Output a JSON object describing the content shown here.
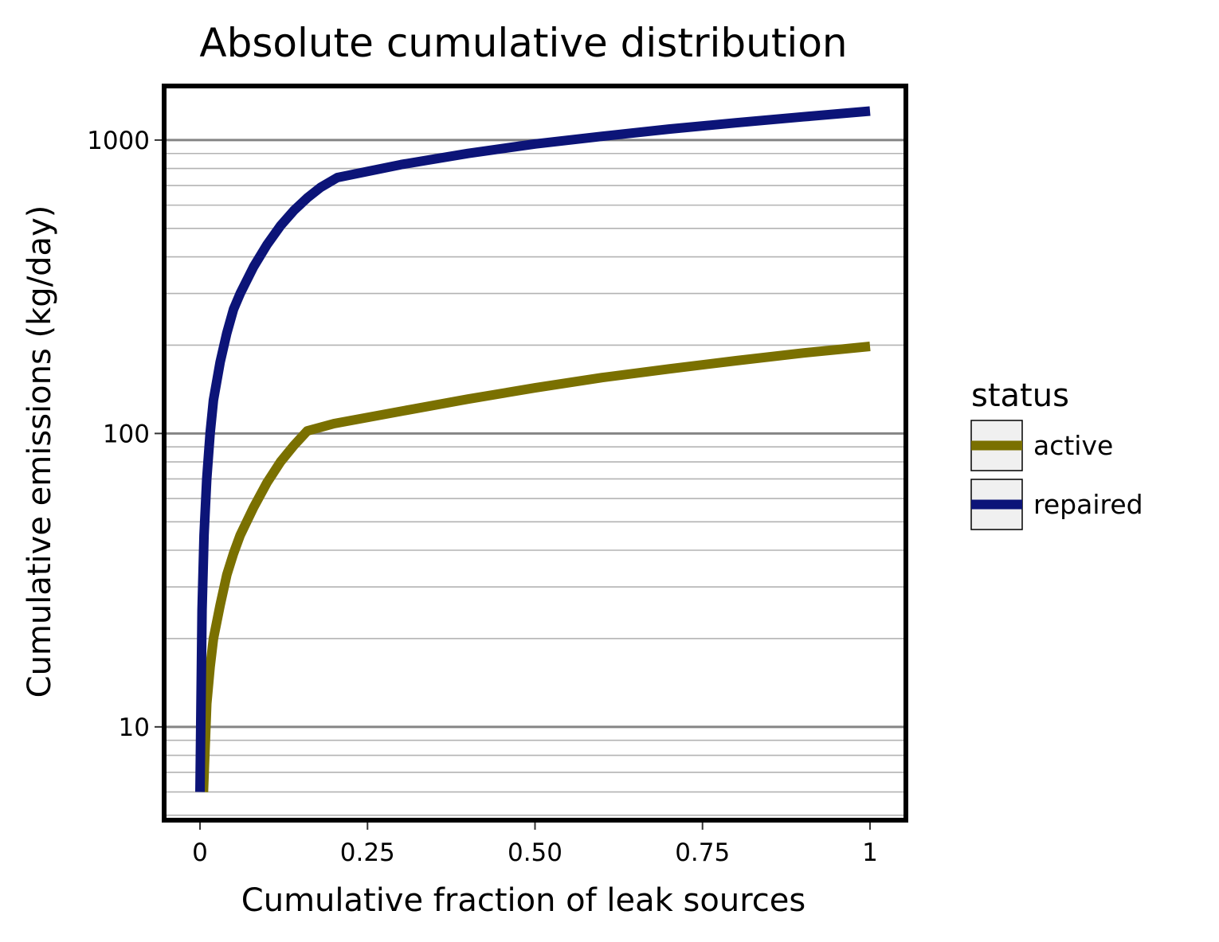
{
  "chart_data": {
    "type": "line",
    "title": "Absolute cumulative distribution",
    "xlabel": "Cumulative fraction of leak sources",
    "ylabel": "Cumulative emissions (kg/day)",
    "xlim": [
      -0.05,
      1.05
    ],
    "ylim": [
      4.9,
      1500
    ],
    "yscale": "log",
    "x_ticks": [
      0,
      0.25,
      0.5,
      0.75,
      1
    ],
    "x_tick_labels": [
      "0",
      "0.25",
      "0.50",
      "0.75",
      "1"
    ],
    "y_ticks": [
      10,
      100,
      1000
    ],
    "y_tick_labels": [
      "10",
      "100",
      "1000"
    ],
    "grid": "horizontal major and minor",
    "legend": {
      "title": "status",
      "position": "right",
      "entries": [
        {
          "label": "active",
          "color": "#7a7000"
        },
        {
          "label": "repaired",
          "color": "#0c1478"
        }
      ]
    },
    "series": [
      {
        "name": "active",
        "color": "#7a7000",
        "x": [
          0.005,
          0.01,
          0.015,
          0.02,
          0.03,
          0.04,
          0.05,
          0.06,
          0.08,
          0.1,
          0.12,
          0.14,
          0.16,
          0.2,
          0.3,
          0.4,
          0.5,
          0.6,
          0.7,
          0.8,
          0.9,
          1.0
        ],
        "y": [
          6,
          12,
          16,
          20,
          26,
          33,
          39,
          45,
          56,
          68,
          80,
          91,
          102,
          108,
          119,
          131,
          143,
          155,
          166,
          177,
          188,
          198
        ]
      },
      {
        "name": "repaired",
        "color": "#0c1478",
        "x": [
          0.0,
          0.003,
          0.006,
          0.01,
          0.015,
          0.02,
          0.03,
          0.04,
          0.05,
          0.06,
          0.08,
          0.1,
          0.12,
          0.14,
          0.16,
          0.18,
          0.205,
          0.3,
          0.4,
          0.5,
          0.6,
          0.7,
          0.8,
          0.9,
          1.0
        ],
        "y": [
          6,
          25,
          45,
          70,
          100,
          130,
          175,
          220,
          265,
          300,
          370,
          440,
          510,
          575,
          635,
          690,
          745,
          825,
          900,
          970,
          1030,
          1090,
          1145,
          1200,
          1255
        ]
      }
    ]
  }
}
